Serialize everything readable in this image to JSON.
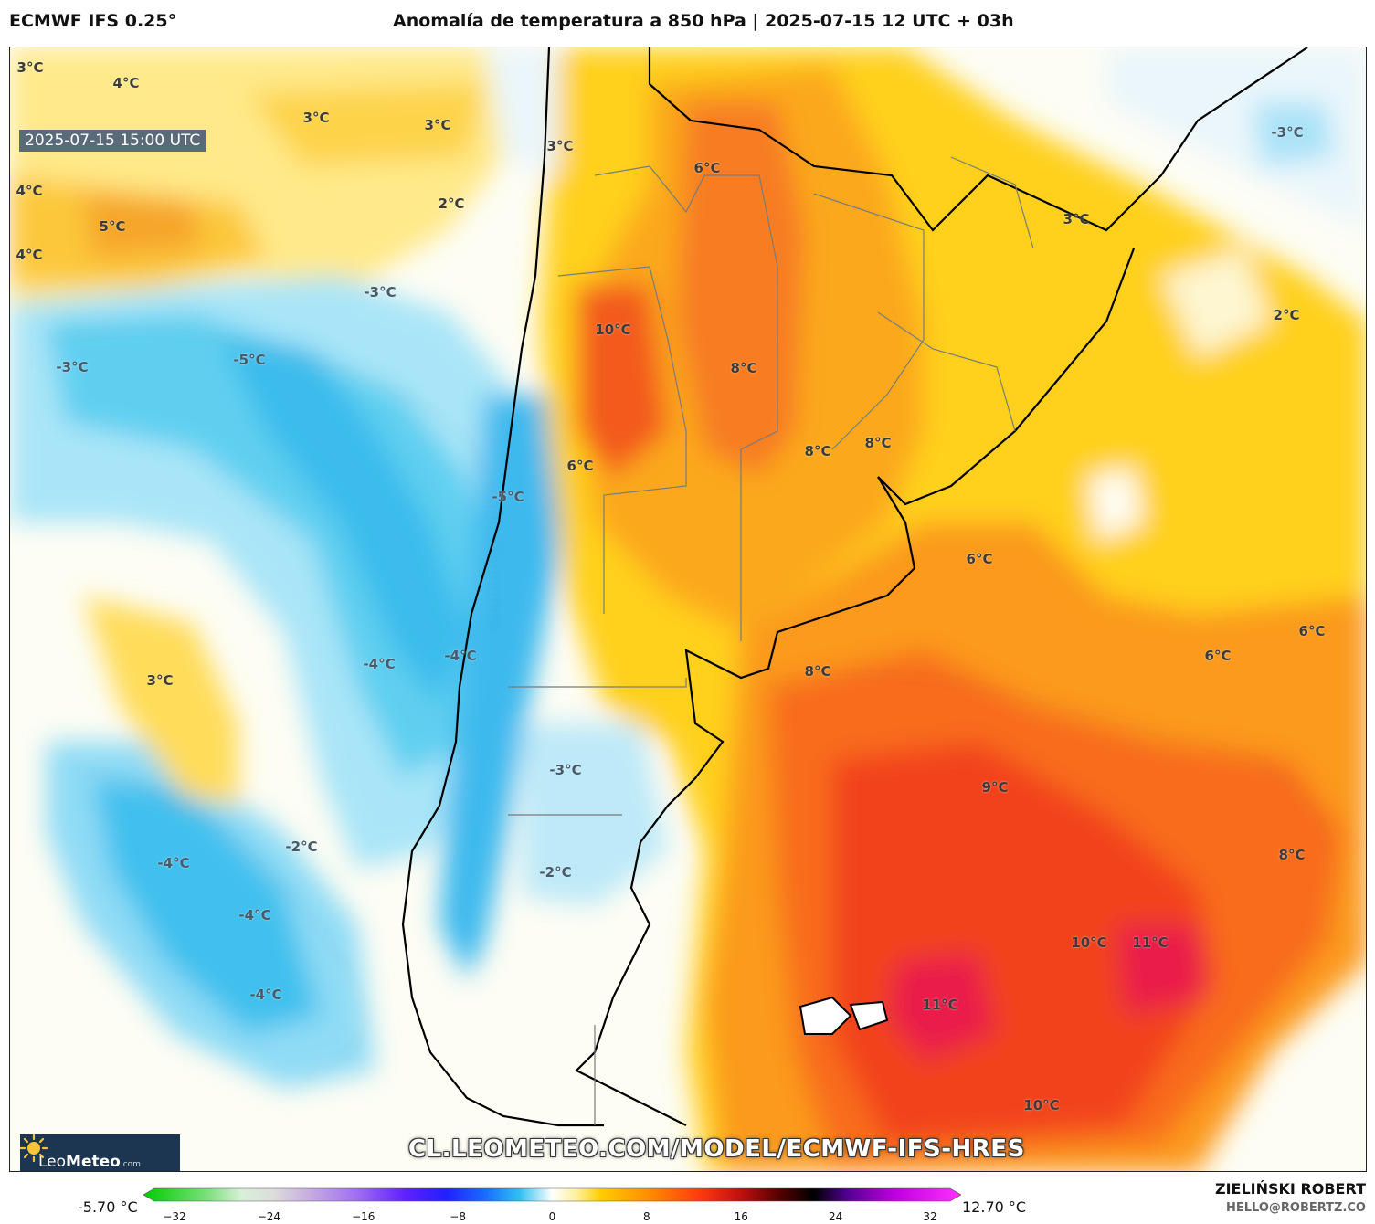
{
  "header": {
    "model": "ECMWF IFS 0.25°",
    "title": "Anomalía de temperatura a 850 hPa | 2025-07-15 12 UTC + 03h"
  },
  "valid_time": "2025-07-15 15:00 UTC",
  "map": {
    "variable": "Anomalía de temperatura a 850 hPa",
    "labels": [
      {
        "text": "3°C",
        "cold": false
      },
      {
        "text": "4°C",
        "cold": false
      },
      {
        "text": "3°C",
        "cold": false
      },
      {
        "text": "3°C",
        "cold": false
      },
      {
        "text": "3°C",
        "cold": false
      },
      {
        "text": "6°C",
        "cold": false
      },
      {
        "text": "4°C",
        "cold": false
      },
      {
        "text": "2°C",
        "cold": false
      },
      {
        "text": "5°C",
        "cold": false
      },
      {
        "text": "4°C",
        "cold": false
      },
      {
        "text": "-3°C",
        "cold": true
      },
      {
        "text": "-3°C",
        "cold": true
      },
      {
        "text": "3°C",
        "cold": false
      },
      {
        "text": "10°C",
        "cold": false
      },
      {
        "text": "2°C",
        "cold": false
      },
      {
        "text": "-5°C",
        "cold": true
      },
      {
        "text": "-3°C",
        "cold": true
      },
      {
        "text": "8°C",
        "cold": false
      },
      {
        "text": "8°C",
        "cold": false
      },
      {
        "text": "8°C",
        "cold": false
      },
      {
        "text": "6°C",
        "cold": false
      },
      {
        "text": "-5°C",
        "cold": true
      },
      {
        "text": "6°C",
        "cold": false
      },
      {
        "text": "6°C",
        "cold": false
      },
      {
        "text": "6°C",
        "cold": false
      },
      {
        "text": "-4°C",
        "cold": true
      },
      {
        "text": "-4°C",
        "cold": true
      },
      {
        "text": "3°C",
        "cold": false
      },
      {
        "text": "8°C",
        "cold": false
      },
      {
        "text": "-3°C",
        "cold": true
      },
      {
        "text": "9°C",
        "cold": false
      },
      {
        "text": "-2°C",
        "cold": true
      },
      {
        "text": "8°C",
        "cold": false
      },
      {
        "text": "-4°C",
        "cold": true
      },
      {
        "text": "-2°C",
        "cold": true
      },
      {
        "text": "-4°C",
        "cold": true
      },
      {
        "text": "10°C",
        "cold": false
      },
      {
        "text": "11°C",
        "cold": false
      },
      {
        "text": "-4°C",
        "cold": true
      },
      {
        "text": "11°C",
        "cold": false
      },
      {
        "text": "10°C",
        "cold": false
      }
    ]
  },
  "logo": {
    "brand_light": "Leo",
    "brand_bold": "Meteo",
    "domain": ".com"
  },
  "watermark_url": "CL.LEOMETEO.COM/MODEL/ECMWF-IFS-HRES",
  "colorbar": {
    "min_label": "-5.70 °C",
    "max_label": "12.70 °C",
    "ticks": [
      "−32",
      "−24",
      "−16",
      "−8",
      "0",
      "8",
      "16",
      "24",
      "32"
    ],
    "range": [
      -32,
      32
    ]
  },
  "credit": {
    "author": "ZIELIŃSKI ROBERT",
    "email": "HELLO@ROBERTZ.CO"
  }
}
